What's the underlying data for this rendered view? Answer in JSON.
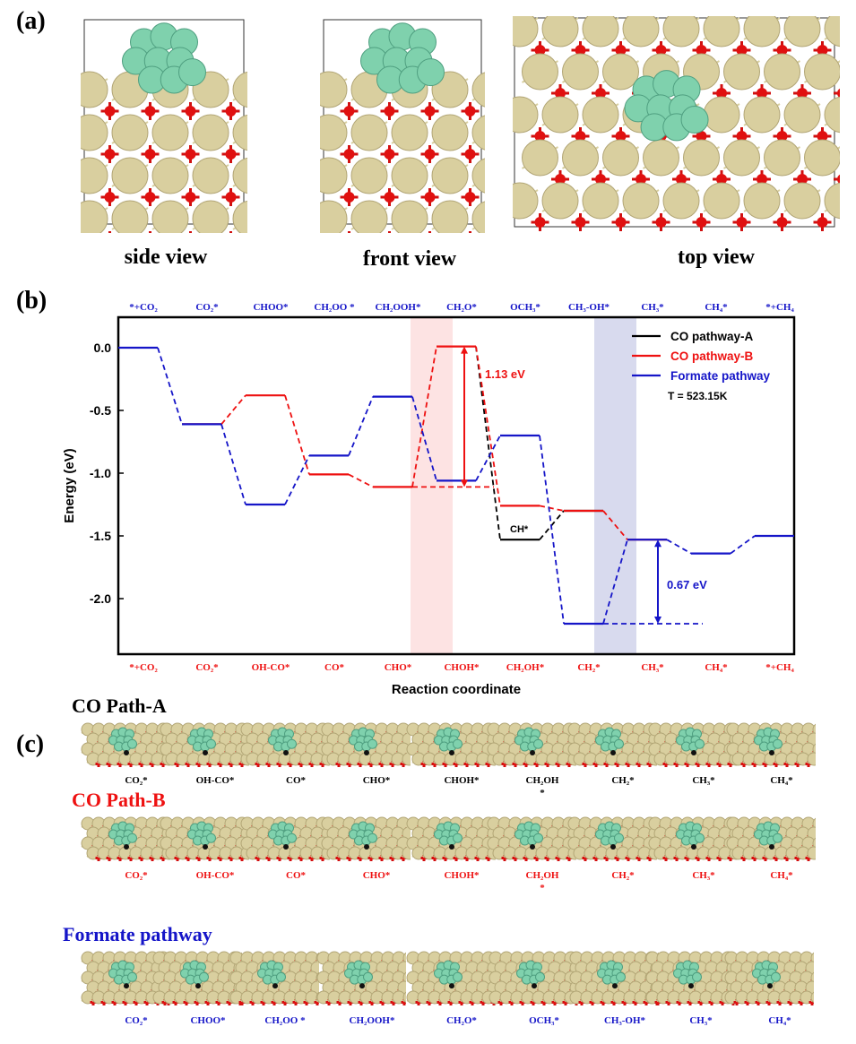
{
  "panel_a": {
    "label": "(a)",
    "views": [
      {
        "caption": "side view"
      },
      {
        "caption": "front view"
      },
      {
        "caption": "top view"
      }
    ]
  },
  "panel_b": {
    "label": "(b)"
  },
  "panel_c": {
    "label": "(c)",
    "rows": [
      {
        "title": "CO Path-A",
        "color": "#000000",
        "labels": [
          "CO₂*",
          "OH-CO*",
          "CO*",
          "CHO*",
          "CHOH*",
          "CH₂OH *",
          "CH₂*",
          "CH₃*",
          "CH₄*"
        ]
      },
      {
        "title": "CO Path-B",
        "color": "#ee1111",
        "labels": [
          "CO₂*",
          "OH-CO*",
          "CO*",
          "CHO*",
          "CHOH*",
          "CH₂OH *",
          "CH₂*",
          "CH₃*",
          "CH₄*"
        ]
      },
      {
        "title": "Formate pathway",
        "color": "#1515c8",
        "labels": [
          "CO₂*",
          "CHOO*",
          "CH₂OO *",
          "CH₂OOH*",
          "CH₂O*",
          "OCH₃*",
          "CH₃-OH*",
          "CH₃*",
          "CH₄*"
        ]
      }
    ]
  },
  "chart_data": {
    "type": "line",
    "title": "",
    "xlabel": "Reaction coordinate",
    "ylabel": "Energy (eV)",
    "ylim": [
      -2.44,
      0.24
    ],
    "yticks": [
      0.0,
      -0.5,
      -1.0,
      -1.5,
      -2.0
    ],
    "ytick_labels": [
      "0.0",
      "-0.5",
      "-1.0",
      "-1.5",
      "-2.0"
    ],
    "top_categories": [
      "*+CO₂",
      "CO₂*",
      "CHOO*",
      "CH₂OO *",
      "CH₂OOH*",
      "CH₂O*",
      "OCH₃*",
      "CH₃-OH*",
      "CH₃*",
      "CH₄*",
      "*+CH₄"
    ],
    "bottom_categories": [
      "*+CO₂",
      "CO₂*",
      "OH-CO*",
      "CO*",
      "CHO*",
      "CHOH*",
      "CH₂OH*",
      "CH₂*",
      "CH₃*",
      "CH₄*",
      "*+CH₄"
    ],
    "series": [
      {
        "name": "CO pathway-A",
        "color": "#000000",
        "positions": [
          5,
          6,
          7
        ],
        "values": [
          0.01,
          -1.53,
          -1.3
        ]
      },
      {
        "name": "CO pathway-B",
        "color": "#ee1111",
        "positions": [
          1,
          2,
          3,
          4,
          5,
          6,
          7,
          8
        ],
        "values": [
          -0.61,
          -0.38,
          -1.01,
          -1.11,
          0.01,
          -1.26,
          -1.3,
          -1.53
        ]
      },
      {
        "name": "Formate pathway",
        "color": "#1515c8",
        "positions": [
          0,
          1,
          2,
          3,
          4,
          5,
          6,
          7,
          8,
          9,
          10
        ],
        "values": [
          0,
          -0.61,
          -1.25,
          -0.86,
          -0.39,
          -1.06,
          -0.7,
          -2.2,
          -1.53,
          -1.64,
          -1.5
        ]
      }
    ],
    "annotations": [
      {
        "text": "1.13 eV",
        "color": "#ee1111",
        "from": -1.11,
        "to": 0.01
      },
      {
        "text": "0.67 eV",
        "color": "#1515c8",
        "from": -2.2,
        "to": -1.53
      },
      {
        "text": "CH*",
        "color": "#000000"
      },
      {
        "text": "T = 523.15K",
        "color": "#000000"
      }
    ],
    "highlight_bands": [
      {
        "between_positions": [
          4,
          5
        ],
        "color": "#fde3e3"
      },
      {
        "between_positions": [
          7,
          8
        ],
        "color": "#d8daee"
      }
    ],
    "legend_position": "top-right"
  }
}
